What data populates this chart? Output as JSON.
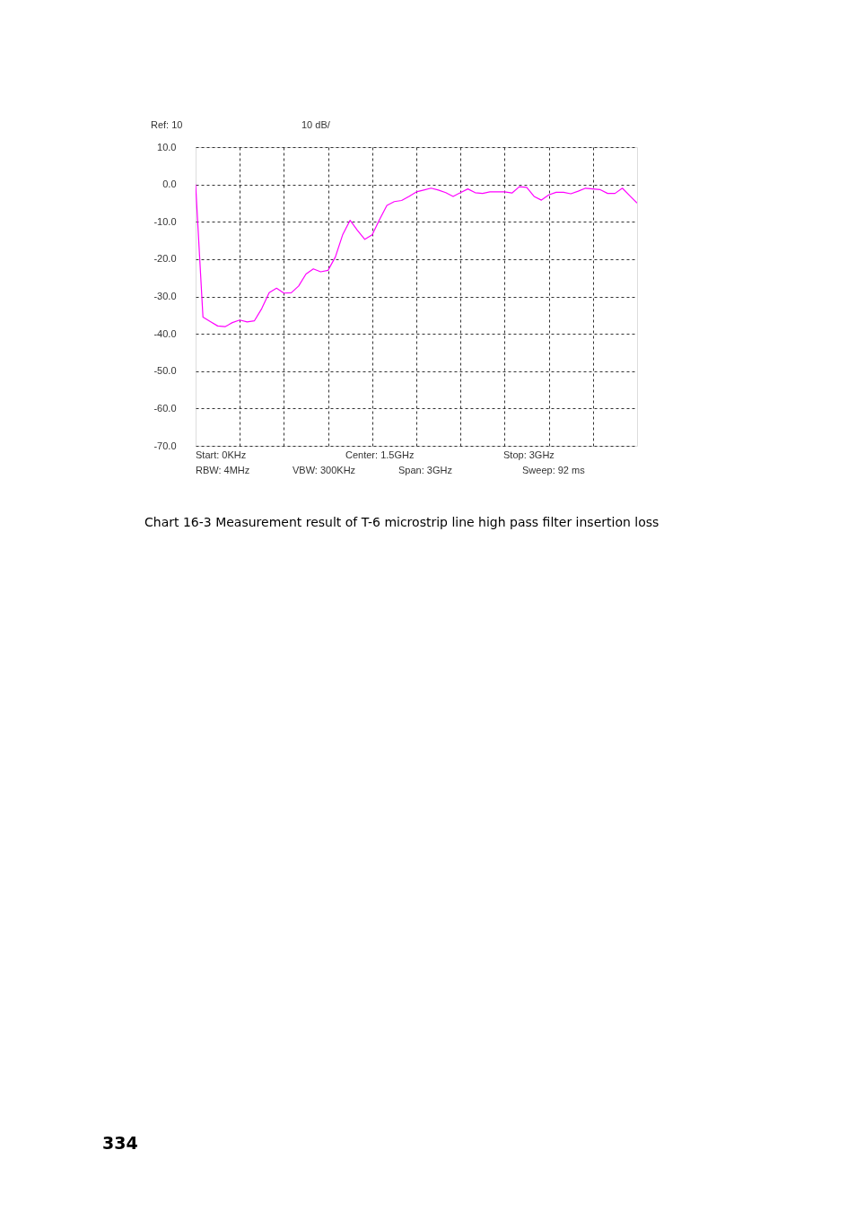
{
  "chart_data": {
    "type": "line",
    "tick_labels": "y",
    "grid": true,
    "marker": "none",
    "line_style": "solid",
    "categories": [
      null,
      null,
      null,
      null,
      null,
      null,
      null,
      null,
      null,
      null,
      null,
      null,
      null,
      null,
      null,
      null,
      null,
      null,
      null,
      null,
      null,
      null,
      null,
      null,
      null,
      null,
      null,
      null,
      null,
      null,
      null,
      null,
      null,
      null,
      null,
      null,
      null,
      null,
      null,
      null,
      null,
      null,
      null,
      null,
      null,
      null,
      null,
      null,
      null,
      null,
      null,
      null,
      null,
      null,
      null,
      null,
      null,
      null,
      null,
      null,
      null
    ],
    "ylim": [
      -70,
      10
    ],
    "yticks": [
      {
        "value": 10,
        "label": "10.0"
      },
      {
        "value": 0,
        "label": "0.0"
      },
      {
        "value": -10,
        "label": "-10.0"
      },
      {
        "value": -20,
        "label": "-20.0"
      },
      {
        "value": -30,
        "label": "-30.0"
      },
      {
        "value": -40,
        "label": "-40.0"
      },
      {
        "value": -50,
        "label": "-50.0"
      },
      {
        "value": -60,
        "label": "-60.0"
      },
      {
        "value": -70,
        "label": "-70.0"
      }
    ],
    "series": [
      {
        "color": "#ff00ff",
        "values": [
          0,
          -35.5,
          -36.7,
          -37.9,
          -38.1,
          -37.0,
          -36.3,
          -36.8,
          -36.5,
          -33.2,
          -29,
          -27.8,
          -29.1,
          -29,
          -27.2,
          -24,
          -22.6,
          -23.4,
          -23.0,
          -19.4,
          -13.4,
          -9.6,
          -12.3,
          -14.7,
          -13.5,
          -9.4,
          -5.6,
          -4.6,
          -4.3,
          -3.2,
          -2.0,
          -1.5,
          -1.0,
          -1.5,
          -2.2,
          -3.2,
          -2.2,
          -1.2,
          -2.2,
          -2.4,
          -2.0,
          -2.0,
          -2.0,
          -2.3,
          -0.6,
          -0.8,
          -3.2,
          -4.2,
          -2.8,
          -2.1,
          -2.1,
          -2.5,
          -1.8,
          -1.0,
          -1.2,
          -1.4,
          -2.4,
          -2.4,
          -1.0,
          -3.0,
          -5.0
        ]
      }
    ],
    "annotations": [
      "Ref: 10",
      "10 dB/",
      "Start: 0KHz",
      "Center: 1.5GHz",
      "Stop: 3GHz",
      "RBW: 4MHz",
      "VBW: 300KHz",
      "Span: 3GHz",
      "Sweep: 92  ms",
      "Chart 16-3 Measurement result of T-6 microstrip line high pass filter insertion loss",
      "334"
    ]
  }
}
